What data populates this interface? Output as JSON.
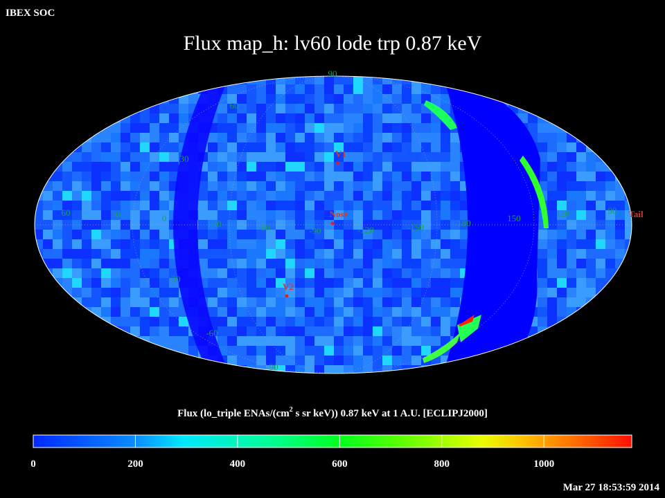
{
  "header": "IBEX SOC",
  "title": "Flux map_h: lv60 lode trp 0.87 keV",
  "grid_labels": {
    "longitude": [
      "60",
      "30",
      "0",
      "-30",
      "-60",
      "-90",
      "-120",
      "-150",
      "180",
      "150",
      "120",
      "90"
    ],
    "latitude": [
      "90",
      "60",
      "30",
      "-30",
      "-60",
      "-90"
    ]
  },
  "markers": [
    "V1",
    "Nose",
    "V2",
    "Tail"
  ],
  "colorbar": {
    "label": "Flux (lo_triple ENAs/(cm",
    "label_sup": "2",
    "label_rest": " s sr keV)) 0.87 keV at 1 A.U. [ECLIPJ2000]",
    "lim": [
      0,
      1172
    ],
    "ticks": [
      0,
      200,
      400,
      600,
      800,
      1000
    ]
  },
  "timestamp": "Mar 27 18:53:59 2014"
}
